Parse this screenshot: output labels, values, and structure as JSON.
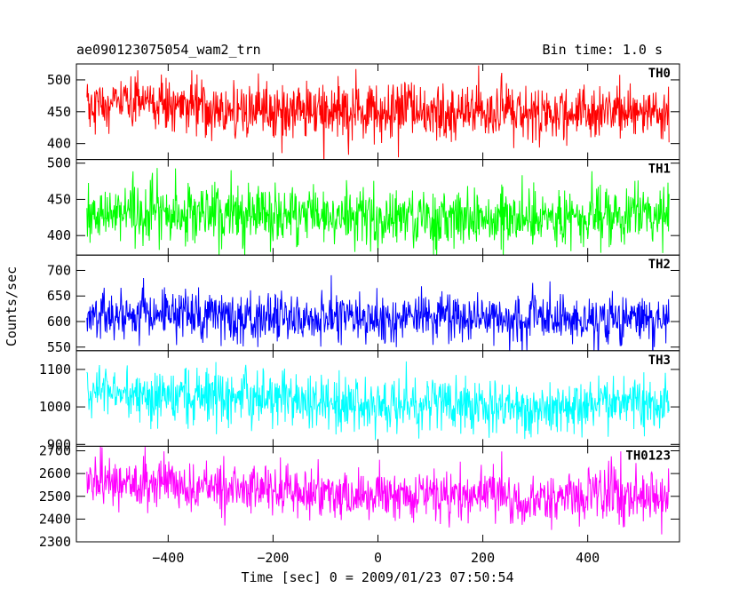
{
  "header": {
    "title": "ae090123075054_wam2_trn",
    "bin_time": "Bin time: 1.0 s"
  },
  "chart_data": {
    "type": "line",
    "title": "ae090123075054_wam2_trn",
    "subtitle": "Bin time: 1.0 s",
    "xlabel": "Time [sec] 0 = 2009/01/23 07:50:54",
    "ylabel": "Counts/sec",
    "xlim": [
      -575,
      575
    ],
    "xticks": [
      -400,
      -200,
      0,
      200,
      400
    ],
    "xtick_labels": [
      "−400",
      "−200",
      "0",
      "200",
      "400"
    ],
    "x_start": -555,
    "x_end": 555,
    "bin_sec": 1.0,
    "grid": false,
    "series": [
      {
        "name": "TH0",
        "color": "#ff0000",
        "ylim": [
          375,
          525
        ],
        "yticks": [
          400,
          450,
          500
        ],
        "mean": 452,
        "std": 22,
        "trend": [
          [
            -555,
            462
          ],
          [
            -400,
            460
          ],
          [
            -200,
            450
          ],
          [
            0,
            448
          ],
          [
            200,
            450
          ],
          [
            400,
            448
          ],
          [
            555,
            450
          ]
        ]
      },
      {
        "name": "TH1",
        "color": "#00ff00",
        "ylim": [
          373,
          505
        ],
        "yticks": [
          400,
          450,
          500
        ],
        "mean": 428,
        "std": 20,
        "trend": [
          [
            -555,
            430
          ],
          [
            -400,
            430
          ],
          [
            -200,
            427
          ],
          [
            0,
            427
          ],
          [
            200,
            427
          ],
          [
            400,
            427
          ],
          [
            555,
            428
          ]
        ]
      },
      {
        "name": "TH2",
        "color": "#0000ff",
        "ylim": [
          543,
          730
        ],
        "yticks": [
          550,
          600,
          650,
          700
        ],
        "mean": 610,
        "std": 25,
        "trend": [
          [
            -555,
            612
          ],
          [
            -400,
            615
          ],
          [
            -200,
            608
          ],
          [
            0,
            607
          ],
          [
            200,
            607
          ],
          [
            400,
            603
          ],
          [
            555,
            605
          ]
        ]
      },
      {
        "name": "TH3",
        "color": "#00ffff",
        "ylim": [
          895,
          1150
        ],
        "yticks": [
          900,
          1000,
          1100
        ],
        "mean": 1010,
        "std": 35,
        "trend": [
          [
            -555,
            1040
          ],
          [
            -400,
            1040
          ],
          [
            -200,
            1020
          ],
          [
            0,
            1005
          ],
          [
            200,
            1005
          ],
          [
            300,
            990
          ],
          [
            400,
            1010
          ],
          [
            555,
            1010
          ]
        ]
      },
      {
        "name": "TH0123",
        "color": "#ff00ff",
        "ylim": [
          2300,
          2720
        ],
        "yticks": [
          2300,
          2400,
          2500,
          2600,
          2700
        ],
        "mean": 2520,
        "std": 55,
        "trend": [
          [
            -555,
            2560
          ],
          [
            -400,
            2555
          ],
          [
            -200,
            2530
          ],
          [
            0,
            2500
          ],
          [
            200,
            2500
          ],
          [
            300,
            2470
          ],
          [
            400,
            2520
          ],
          [
            555,
            2500
          ]
        ]
      }
    ]
  }
}
